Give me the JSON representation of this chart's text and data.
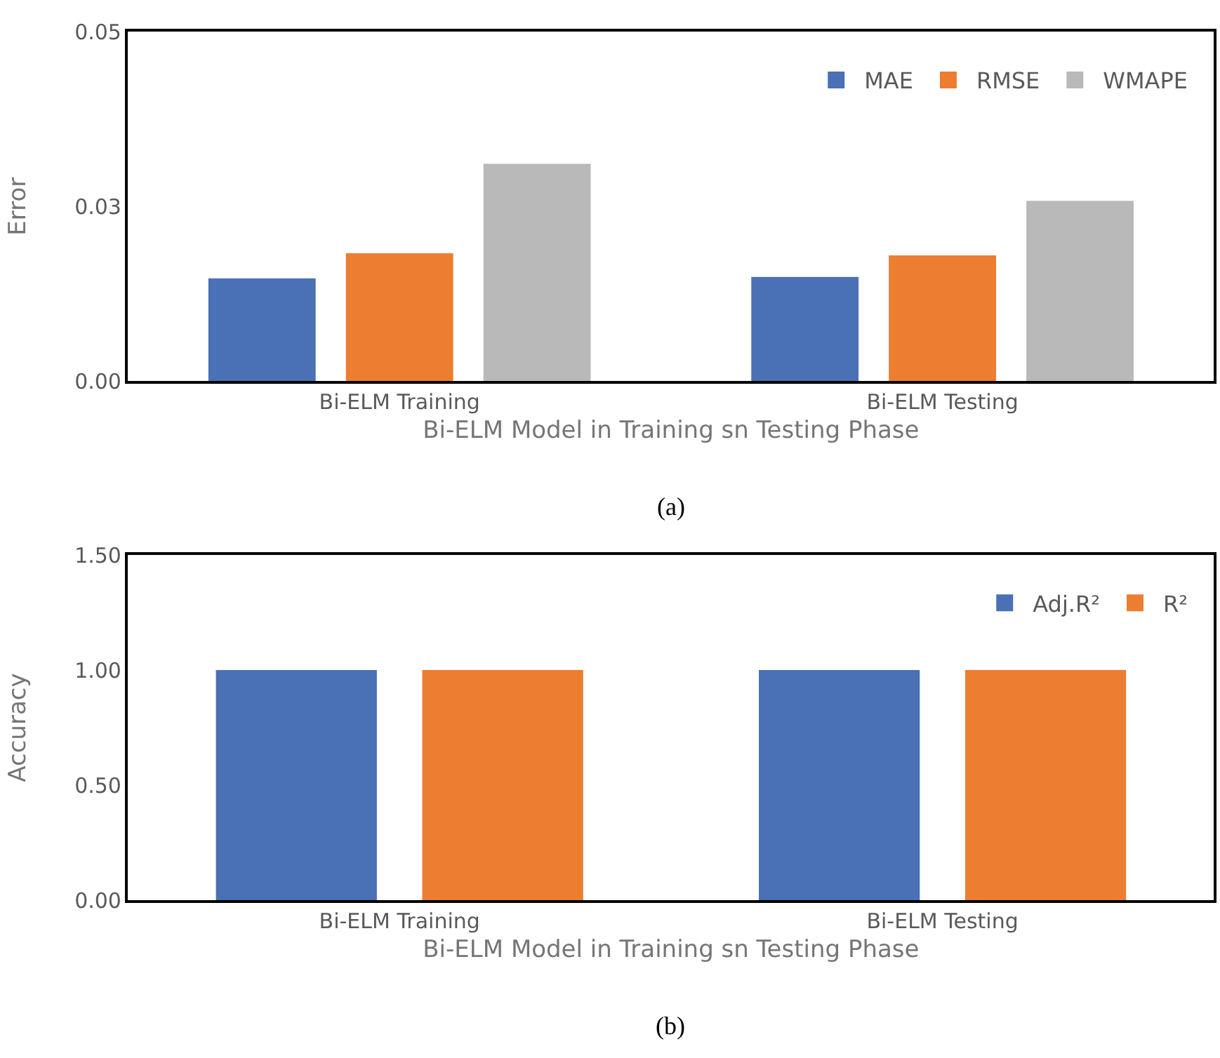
{
  "chart_data": [
    {
      "type": "bar",
      "categories": [
        "Bi-ELM Training",
        "Bi-ELM Testing"
      ],
      "xlabel": "Bi-ELM Model in Training sn Testing Phase",
      "ylabel": "Error",
      "series": [
        {
          "name": "MAE",
          "color": "#4a70b5",
          "values": [
            0.0147,
            0.0149
          ]
        },
        {
          "name": "RMSE",
          "color": "#ed7d31",
          "values": [
            0.0183,
            0.018
          ]
        },
        {
          "name": "WMAPE",
          "color": "#b9b9b9",
          "values": [
            0.0311,
            0.0258
          ]
        }
      ],
      "ylim": [
        0,
        0.05
      ],
      "yticks": [
        {
          "value": 0,
          "label": "0.00"
        },
        {
          "value": 0.025,
          "label": "0.03"
        },
        {
          "value": 0.05,
          "label": "0.05"
        }
      ],
      "grid": false,
      "legend": "top right",
      "annotations": [
        "(a)"
      ]
    },
    {
      "type": "bar",
      "categories": [
        "Bi-ELM Training",
        "Bi-ELM Testing"
      ],
      "xlabel": "Bi-ELM Model in Training sn Testing Phase",
      "ylabel": "Accuracy",
      "series": [
        {
          "name": "Adj.R²",
          "color": "#4a70b5",
          "values": [
            1.0,
            1.0
          ]
        },
        {
          "name": "R²",
          "color": "#ed7d31",
          "values": [
            1.0,
            1.0
          ]
        }
      ],
      "ylim": [
        0,
        1.5
      ],
      "yticks": [
        {
          "value": 0,
          "label": "0.00"
        },
        {
          "value": 0.5,
          "label": "0.50"
        },
        {
          "value": 1.0,
          "label": "1.00"
        },
        {
          "value": 1.5,
          "label": "1.50"
        }
      ],
      "grid": false,
      "legend": "top right",
      "annotations": [
        "(b)"
      ]
    }
  ]
}
